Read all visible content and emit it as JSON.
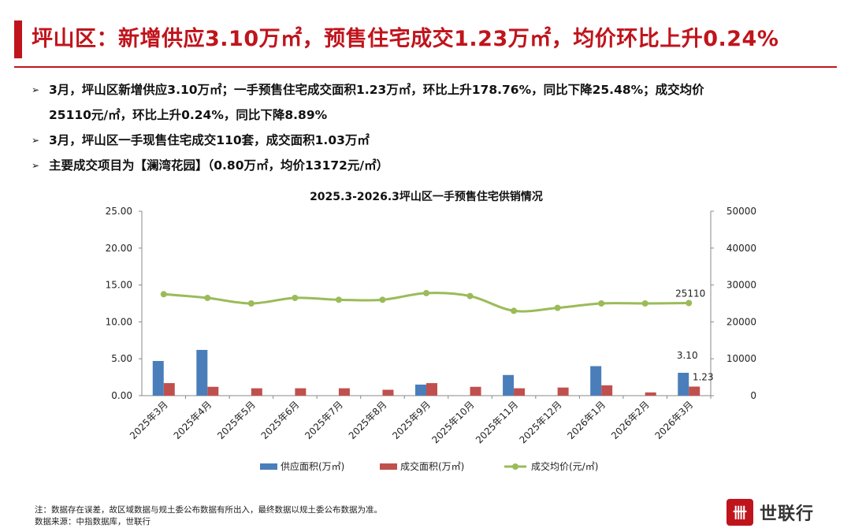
{
  "header": {
    "title": "坪山区：新增供应3.10万㎡，预售住宅成交1.23万㎡，均价环比上升0.24%"
  },
  "bullets": [
    {
      "arrow": "➢",
      "line1": "3月，坪山区新增供应3.10万㎡；一手预售住宅成交面积1.23万㎡，环比上升178.76%，同比下降25.48%；成交均价",
      "line2": "25110元/㎡，环比上升0.24%，同比下降8.89%"
    },
    {
      "arrow": "➢",
      "line1": "3月，坪山区一手现售住宅成交110套，成交面积1.03万㎡",
      "line2": ""
    },
    {
      "arrow": "➢",
      "line1": "主要成交项目为【澜湾花园】（0.80万㎡，均价13172元/㎡）",
      "line2": ""
    }
  ],
  "chart_data": {
    "type": "bar",
    "title": "2025.3-2026.3坪山区一手预售住宅供销情况",
    "categories": [
      "2025年3月",
      "2025年4月",
      "2025年5月",
      "2025年6月",
      "2025年7月",
      "2025年8月",
      "2025年9月",
      "2025年10月",
      "2025年11月",
      "2025年12月",
      "2026年1月",
      "2026年2月",
      "2026年3月"
    ],
    "series": [
      {
        "name": "供应面积(万㎡)",
        "type": "bar",
        "axis": "left",
        "color": "#4a7ebb",
        "values": [
          4.7,
          6.2,
          0,
          0,
          0,
          0,
          1.5,
          0,
          2.8,
          0,
          4.0,
          0,
          3.1
        ]
      },
      {
        "name": "成交面积(万㎡)",
        "type": "bar",
        "axis": "left",
        "color": "#c0504d",
        "values": [
          1.7,
          1.2,
          1.0,
          1.0,
          1.0,
          0.8,
          1.7,
          1.2,
          1.0,
          1.1,
          1.4,
          0.44,
          1.23
        ]
      },
      {
        "name": "成交均价(元/㎡)",
        "type": "line",
        "axis": "right",
        "color": "#9bbb59",
        "values": [
          27500,
          26500,
          25000,
          26500,
          26000,
          26000,
          27800,
          27000,
          23000,
          23800,
          25000,
          25000,
          25110
        ]
      }
    ],
    "ylim_left": [
      0,
      25
    ],
    "yticks_left": [
      "25.00",
      "20.00",
      "15.00",
      "10.00",
      "5.00",
      "0.00"
    ],
    "ylim_right": [
      0,
      50000
    ],
    "yticks_right": [
      "50000",
      "40000",
      "30000",
      "20000",
      "10000",
      "0"
    ],
    "data_labels": {
      "supply_last": "3.10",
      "deal_last": "1.23",
      "price_last": "25110"
    },
    "legend_position": "bottom",
    "grid": false
  },
  "footnote": {
    "line1": "注：数据存在误差，故区域数据与规土委公布数据有所出入，最终数据以规土委公布数据为准。",
    "line2": "数据来源：中指数据库，世联行"
  },
  "logo": {
    "text": "世联行",
    "mark": "卌"
  },
  "colors": {
    "accent": "#c0141c",
    "supply": "#4a7ebb",
    "deal": "#c0504d",
    "price": "#9bbb59"
  }
}
